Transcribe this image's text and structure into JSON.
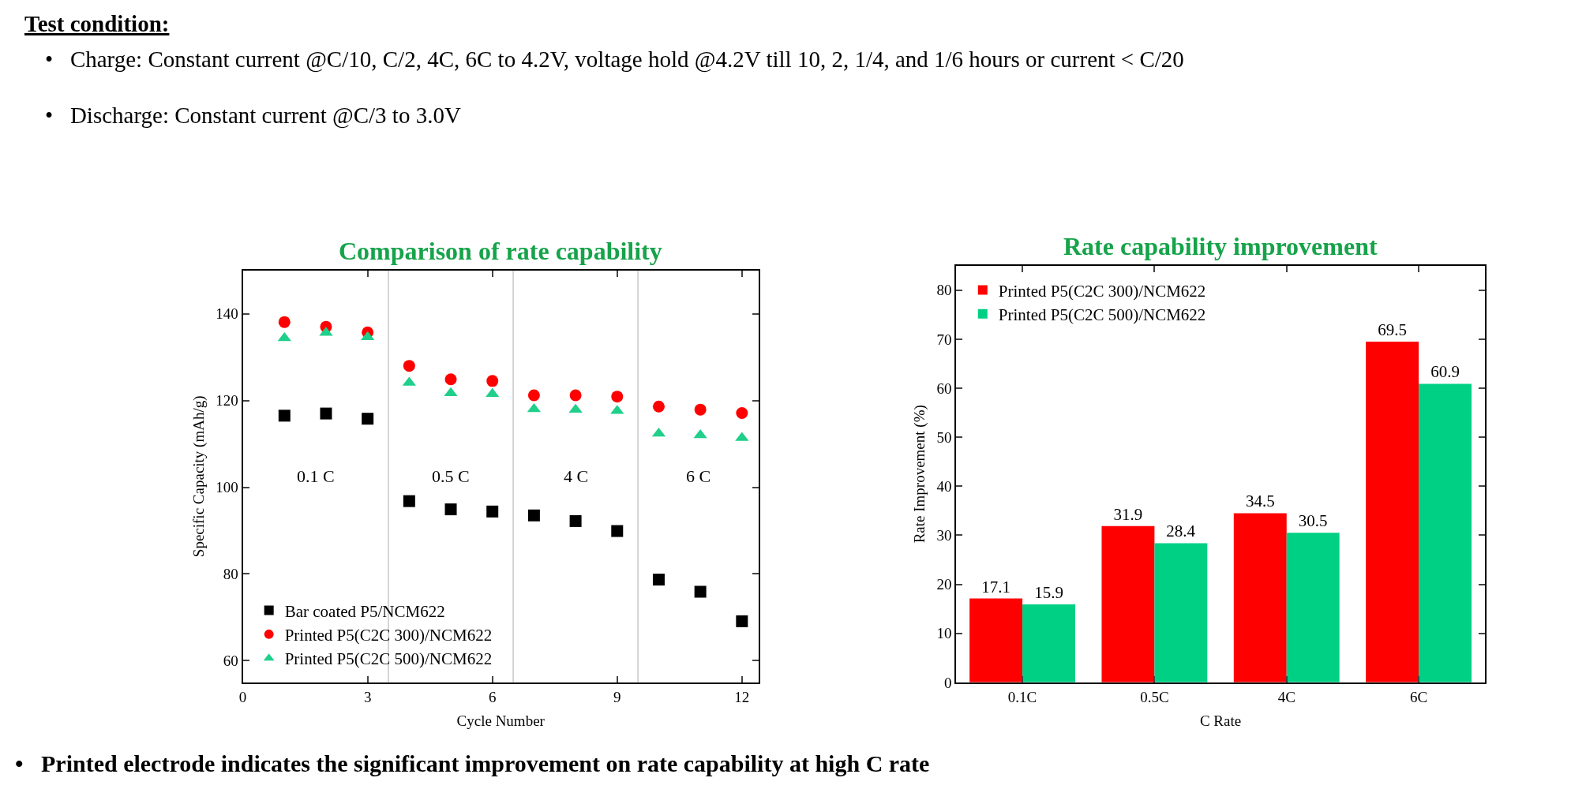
{
  "chart_data": [
    {
      "type": "scatter",
      "title": "Comparison of rate capability",
      "xlabel": "Cycle Number",
      "ylabel": "Specific Capacity (mAh/g)",
      "x": [
        1,
        2,
        3,
        4,
        5,
        6,
        7,
        8,
        9,
        10,
        11,
        12
      ],
      "series": [
        {
          "name": "Bar coated P5/NCM622",
          "color": "#000000",
          "marker": "square",
          "values": [
            116.5,
            117.0,
            115.8,
            96.8,
            94.9,
            94.4,
            93.5,
            92.2,
            89.9,
            78.7,
            75.9,
            69.1
          ]
        },
        {
          "name": "Printed P5(C2C 300)/NCM622",
          "color": "#ff0000",
          "marker": "circle",
          "values": [
            138.1,
            137.0,
            135.7,
            128.0,
            124.9,
            124.5,
            121.2,
            121.2,
            120.9,
            118.6,
            117.9,
            117.1
          ]
        },
        {
          "name": "Printed P5(C2C 500)/NCM622",
          "color": "#1fcf8a",
          "marker": "triangle",
          "values": [
            134.4,
            135.6,
            134.6,
            124.1,
            121.7,
            121.5,
            118.0,
            117.9,
            117.6,
            112.4,
            112.0,
            111.4
          ]
        }
      ],
      "xlim": [
        0,
        12.4
      ],
      "xticks": [
        0,
        3,
        6,
        9,
        12
      ],
      "ylim": [
        55,
        150
      ],
      "yticks": [
        60,
        80,
        100,
        120,
        140
      ],
      "grid": false,
      "legend": "bottom left",
      "ref_lines": [
        {
          "axis": "x",
          "value": 3.5,
          "color": "#c8c8c8"
        },
        {
          "axis": "x",
          "value": 6.5,
          "color": "#c8c8c8"
        },
        {
          "axis": "x",
          "value": 9.5,
          "color": "#c8c8c8"
        }
      ],
      "annotations": [
        "0.1 C",
        "0.5 C",
        "4 C",
        "6 C"
      ]
    },
    {
      "type": "bar",
      "title": "Rate capability improvement",
      "xlabel": "C Rate",
      "ylabel": "Rate Improvement (%)",
      "categories": [
        "0.1C",
        "0.5C",
        "4C",
        "6C"
      ],
      "series": [
        {
          "name": "Printed P5(C2C 300)/NCM622",
          "color": "#ff0000",
          "values": [
            17.1,
            31.9,
            34.5,
            69.5
          ]
        },
        {
          "name": "Printed P5(C2C 500)/NCM622",
          "color": "#00d084",
          "values": [
            15.9,
            28.4,
            30.5,
            60.9
          ]
        }
      ],
      "ylim": [
        0,
        85
      ],
      "yticks": [
        0,
        10,
        20,
        30,
        40,
        50,
        60,
        70,
        80
      ],
      "grid": false,
      "legend": "top left",
      "data_labels": true,
      "annotations": [
        "Test condition:",
        "•   Charge: Constant current @C/10, C/2, 4C, 6C to 4.2V, voltage hold @4.2V till 10, 2, 1/4, and 1/6 hours or current < C/20",
        "•   Discharge: Constant current @C/3 to 3.0V",
        "•   Printed electrode indicates the significant improvement on rate capability at high C rate"
      ]
    }
  ]
}
